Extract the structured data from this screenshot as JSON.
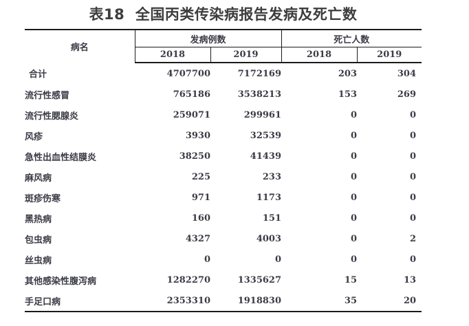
{
  "title": "表18  全国丙类传染病报告发病及死亡数",
  "colors": {
    "text": "#3b3b46",
    "title_text": "#3d3d3d",
    "rule": "#1a1a1a",
    "background": "#ffffff"
  },
  "table": {
    "disease_header": "病名",
    "cases_group_header": "发病例数",
    "deaths_group_header": "死亡人数",
    "year_headers": {
      "cases_2018": "2018",
      "cases_2019": "2019",
      "deaths_2018": "2018",
      "deaths_2019": "2019"
    },
    "rows": [
      {
        "name": "合计",
        "cases_2018": "4707700",
        "cases_2019": "7172169",
        "deaths_2018": "203",
        "deaths_2019": "304"
      },
      {
        "name": "流行性感冒",
        "cases_2018": "765186",
        "cases_2019": "3538213",
        "deaths_2018": "153",
        "deaths_2019": "269"
      },
      {
        "name": "流行性腮腺炎",
        "cases_2018": "259071",
        "cases_2019": "299961",
        "deaths_2018": "0",
        "deaths_2019": "0"
      },
      {
        "name": "风疹",
        "cases_2018": "3930",
        "cases_2019": "32539",
        "deaths_2018": "0",
        "deaths_2019": "0"
      },
      {
        "name": "急性出血性结膜炎",
        "cases_2018": "38250",
        "cases_2019": "41439",
        "deaths_2018": "0",
        "deaths_2019": "0"
      },
      {
        "name": "麻风病",
        "cases_2018": "225",
        "cases_2019": "233",
        "deaths_2018": "0",
        "deaths_2019": "0"
      },
      {
        "name": "斑疹伤寒",
        "cases_2018": "971",
        "cases_2019": "1173",
        "deaths_2018": "0",
        "deaths_2019": "0"
      },
      {
        "name": "黑热病",
        "cases_2018": "160",
        "cases_2019": "151",
        "deaths_2018": "0",
        "deaths_2019": "0"
      },
      {
        "name": "包虫病",
        "cases_2018": "4327",
        "cases_2019": "4003",
        "deaths_2018": "0",
        "deaths_2019": "2"
      },
      {
        "name": "丝虫病",
        "cases_2018": "0",
        "cases_2019": "0",
        "deaths_2018": "0",
        "deaths_2019": "0"
      },
      {
        "name": "其他感染性腹泻病",
        "cases_2018": "1282270",
        "cases_2019": "1335627",
        "deaths_2018": "15",
        "deaths_2019": "13"
      },
      {
        "name": "手足口病",
        "cases_2018": "2353310",
        "cases_2019": "1918830",
        "deaths_2018": "35",
        "deaths_2019": "20"
      }
    ]
  },
  "chart_data": {
    "type": "table",
    "title": "表18  全国丙类传染病报告发病及死亡数",
    "columns": [
      "病名",
      "发病例数 2018",
      "发病例数 2019",
      "死亡人数 2018",
      "死亡人数 2019"
    ],
    "rows": [
      [
        "合计",
        4707700,
        7172169,
        203,
        304
      ],
      [
        "流行性感冒",
        765186,
        3538213,
        153,
        269
      ],
      [
        "流行性腮腺炎",
        259071,
        299961,
        0,
        0
      ],
      [
        "风疹",
        3930,
        32539,
        0,
        0
      ],
      [
        "急性出血性结膜炎",
        38250,
        41439,
        0,
        0
      ],
      [
        "麻风病",
        225,
        233,
        0,
        0
      ],
      [
        "斑疹伤寒",
        971,
        1173,
        0,
        0
      ],
      [
        "黑热病",
        160,
        151,
        0,
        0
      ],
      [
        "包虫病",
        4327,
        4003,
        0,
        2
      ],
      [
        "丝虫病",
        0,
        0,
        0,
        0
      ],
      [
        "其他感染性腹泻病",
        1282270,
        1335627,
        15,
        13
      ],
      [
        "手足口病",
        2353310,
        1918830,
        35,
        20
      ]
    ]
  }
}
